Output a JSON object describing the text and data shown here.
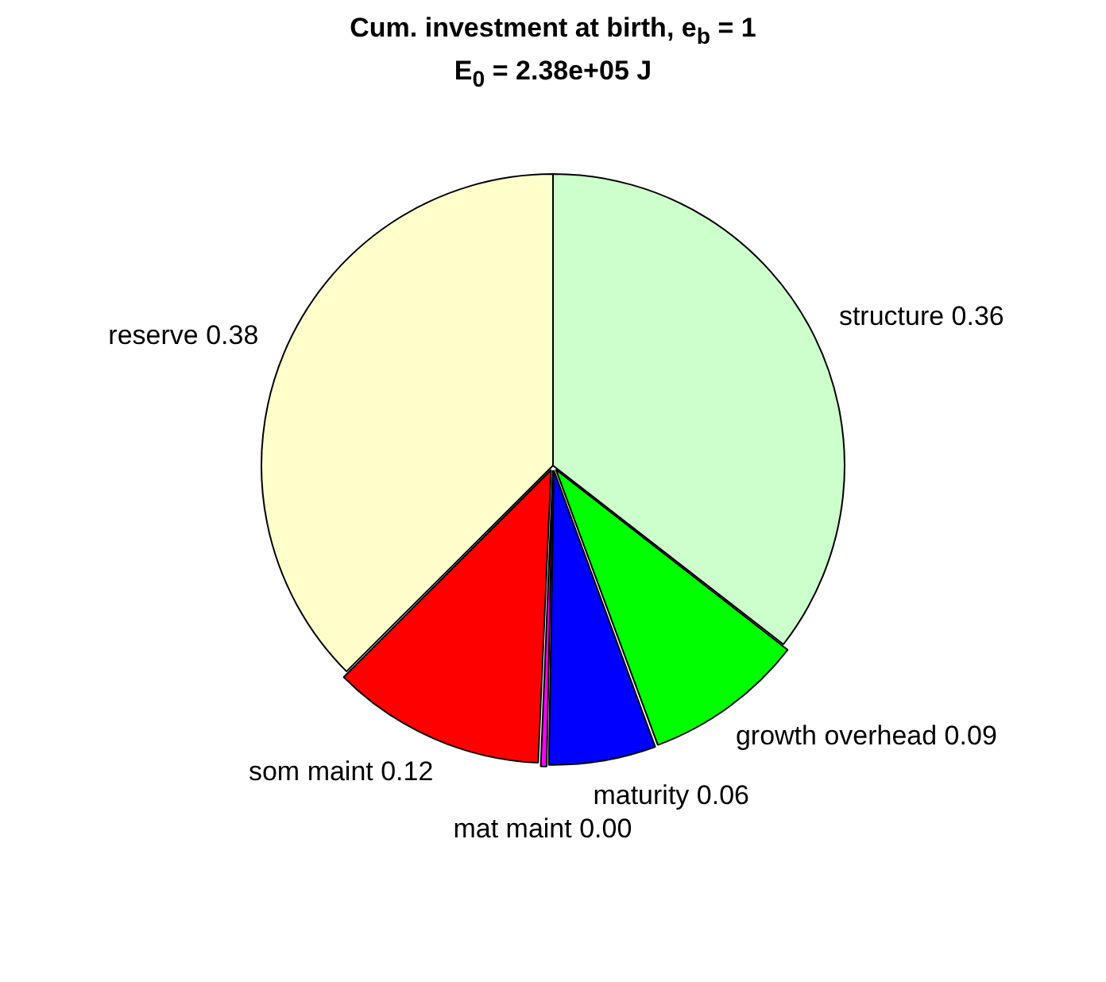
{
  "chart_data": {
    "type": "pie",
    "title": "Cum. investment at birth, e$_{b}$ = 1",
    "subtitle": "E$_{0}$ = 2.38e+05 J",
    "categories": [
      "structure",
      "growth overhead",
      "maturity",
      "mat maint",
      "som maint",
      "reserve"
    ],
    "values": [
      0.36,
      0.09,
      0.06,
      0.004,
      0.12,
      0.38
    ],
    "value_labels": [
      "0.36",
      "0.09",
      "0.06",
      "0.00",
      "0.12",
      "0.38"
    ],
    "colors": [
      "#ccffcc",
      "#00ff00",
      "#0000ff",
      "#ff00ff",
      "#ff0000",
      "#ffffcc"
    ],
    "legend": false
  }
}
